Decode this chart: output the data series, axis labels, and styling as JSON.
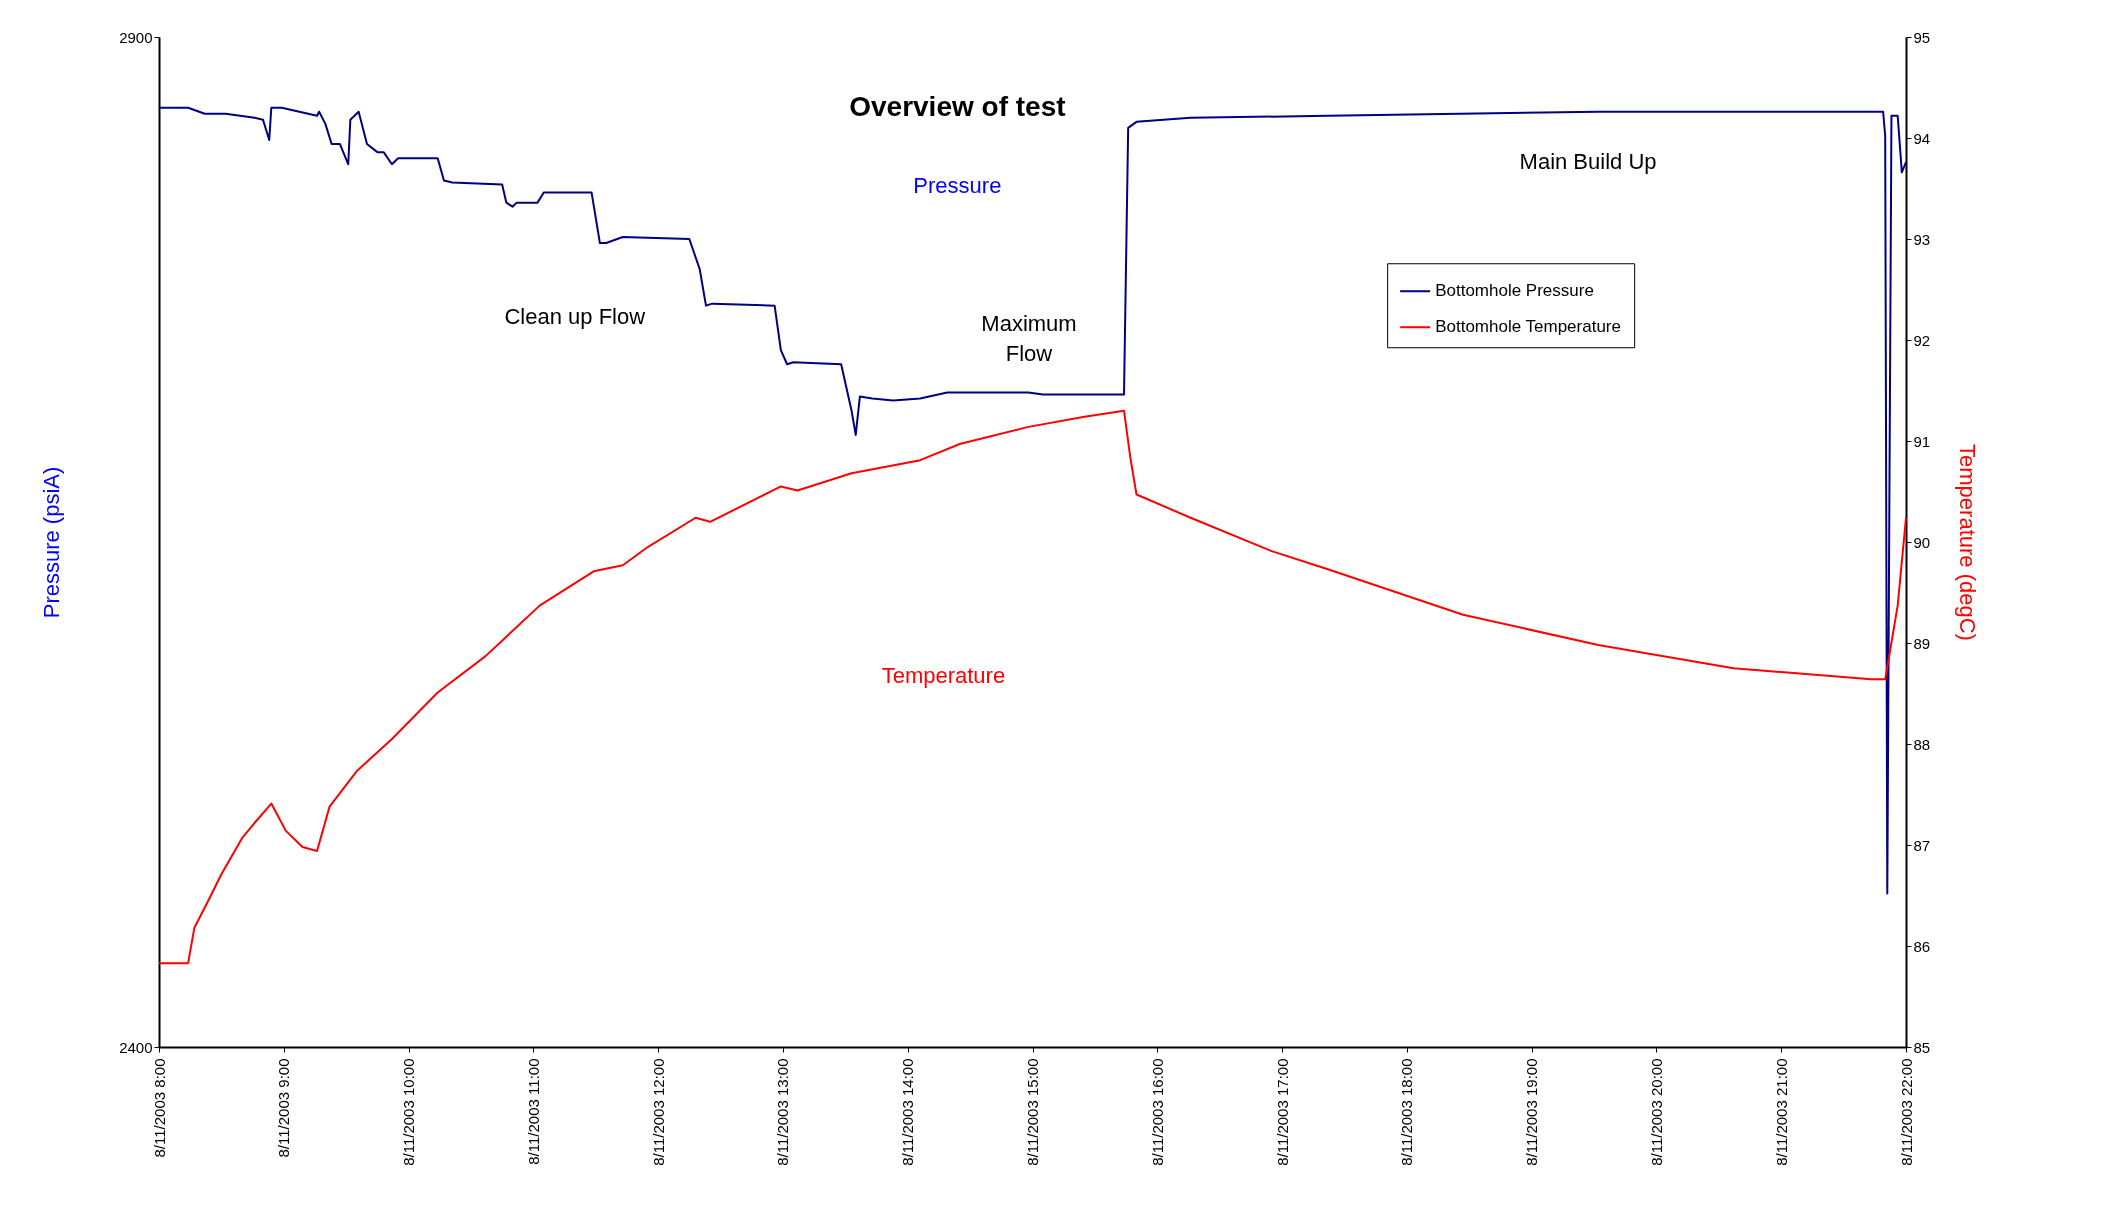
{
  "chart_data": {
    "type": "line",
    "title": "Overview of test",
    "ylabel": "Pressure (psiA)",
    "y2label": "Temperature (degC)",
    "xlim": [
      "2003-08-11T08:00",
      "2003-08-11T22:00"
    ],
    "xticks": [
      {
        "value": "2003-08-11T08:00",
        "label": "8/11/2003 8:00"
      },
      {
        "value": "2003-08-11T09:00",
        "label": "8/11/2003 9:00"
      },
      {
        "value": "2003-08-11T10:00",
        "label": "8/11/2003 10:00"
      },
      {
        "value": "2003-08-11T11:00",
        "label": "8/11/2003 11:00"
      },
      {
        "value": "2003-08-11T12:00",
        "label": "8/11/2003 12:00"
      },
      {
        "value": "2003-08-11T13:00",
        "label": "8/11/2003 13:00"
      },
      {
        "value": "2003-08-11T14:00",
        "label": "8/11/2003 14:00"
      },
      {
        "value": "2003-08-11T15:00",
        "label": "8/11/2003 15:00"
      },
      {
        "value": "2003-08-11T16:00",
        "label": "8/11/2003 16:00"
      },
      {
        "value": "2003-08-11T17:00",
        "label": "8/11/2003 17:00"
      },
      {
        "value": "2003-08-11T18:00",
        "label": "8/11/2003 18:00"
      },
      {
        "value": "2003-08-11T19:00",
        "label": "8/11/2003 19:00"
      },
      {
        "value": "2003-08-11T20:00",
        "label": "8/11/2003 20:00"
      },
      {
        "value": "2003-08-11T21:00",
        "label": "8/11/2003 21:00"
      },
      {
        "value": "2003-08-11T22:00",
        "label": "8/11/2003 22:00"
      }
    ],
    "ylim": [
      2400,
      2900
    ],
    "yticks": [
      2400,
      2900
    ],
    "y2lim": [
      85,
      95
    ],
    "y2ticks": [
      85,
      86,
      87,
      88,
      89,
      90,
      91,
      92,
      93,
      94,
      95
    ],
    "legend": "top right",
    "grid": false,
    "marker": "none",
    "line_style": "solid",
    "series": [
      {
        "name": "Bottomhole Pressure",
        "color": "#000080",
        "x": [
          "2003-08-11T08:00",
          "2003-08-11T08:14",
          "2003-08-11T08:22",
          "2003-08-11T08:32",
          "2003-08-11T08:46",
          "2003-08-11T08:50",
          "2003-08-11T08:53",
          "2003-08-11T08:54",
          "2003-08-11T08:59",
          "2003-08-11T09:16",
          "2003-08-11T09:17",
          "2003-08-11T09:20",
          "2003-08-11T09:23",
          "2003-08-11T09:27",
          "2003-08-11T09:31",
          "2003-08-11T09:32",
          "2003-08-11T09:36",
          "2003-08-11T09:40",
          "2003-08-11T09:45",
          "2003-08-11T09:48",
          "2003-08-11T09:52",
          "2003-08-11T09:55",
          "2003-08-11T10:14",
          "2003-08-11T10:17",
          "2003-08-11T10:21",
          "2003-08-11T10:45",
          "2003-08-11T10:47",
          "2003-08-11T10:50",
          "2003-08-11T10:52",
          "2003-08-11T11:02",
          "2003-08-11T11:05",
          "2003-08-11T11:28",
          "2003-08-11T11:32",
          "2003-08-11T11:35",
          "2003-08-11T11:43",
          "2003-08-11T12:15",
          "2003-08-11T12:20",
          "2003-08-11T12:23",
          "2003-08-11T12:26",
          "2003-08-11T12:56",
          "2003-08-11T12:59",
          "2003-08-11T13:02",
          "2003-08-11T13:05",
          "2003-08-11T13:28",
          "2003-08-11T13:33",
          "2003-08-11T13:35",
          "2003-08-11T13:37",
          "2003-08-11T13:43",
          "2003-08-11T13:53",
          "2003-08-11T14:06",
          "2003-08-11T14:19",
          "2003-08-11T14:58",
          "2003-08-11T15:05",
          "2003-08-11T15:44",
          "2003-08-11T15:46",
          "2003-08-11T15:50",
          "2003-08-11T16:16",
          "2003-08-11T17:22",
          "2003-08-11T19:32",
          "2003-08-11T21:49",
          "2003-08-11T21:50",
          "2003-08-11T21:51",
          "2003-08-11T21:53",
          "2003-08-11T21:56",
          "2003-08-11T21:58",
          "2003-08-11T22:00"
        ],
        "values": [
          2865,
          2865,
          2862,
          2862,
          2860,
          2859,
          2849,
          2865,
          2865,
          2861,
          2863,
          2857,
          2847,
          2847,
          2837,
          2859,
          2863,
          2847,
          2843,
          2843,
          2837,
          2840,
          2840,
          2829,
          2828,
          2827,
          2818,
          2816,
          2818,
          2818,
          2823,
          2823,
          2798,
          2798,
          2801,
          2800,
          2785,
          2767,
          2768,
          2767,
          2745,
          2738,
          2739,
          2738,
          2715,
          2703,
          2722,
          2721,
          2720,
          2721,
          2724,
          2724,
          2723,
          2723,
          2855,
          2858,
          2860,
          2861,
          2863,
          2863,
          2851,
          2476,
          2861,
          2861,
          2833,
          2838
        ]
      },
      {
        "name": "Bottomhole Temperature",
        "color": "#ff0000",
        "axis": "y2",
        "x": [
          "2003-08-11T08:00",
          "2003-08-11T08:14",
          "2003-08-11T08:17",
          "2003-08-11T08:23",
          "2003-08-11T08:30",
          "2003-08-11T08:40",
          "2003-08-11T08:46",
          "2003-08-11T08:54",
          "2003-08-11T09:01",
          "2003-08-11T09:09",
          "2003-08-11T09:16",
          "2003-08-11T09:22",
          "2003-08-11T09:35",
          "2003-08-11T09:52",
          "2003-08-11T10:14",
          "2003-08-11T10:37",
          "2003-08-11T11:03",
          "2003-08-11T11:29",
          "2003-08-11T11:43",
          "2003-08-11T11:55",
          "2003-08-11T12:18",
          "2003-08-11T12:25",
          "2003-08-11T12:59",
          "2003-08-11T13:07",
          "2003-08-11T13:33",
          "2003-08-11T14:06",
          "2003-08-11T14:25",
          "2003-08-11T14:58",
          "2003-08-11T15:25",
          "2003-08-11T15:44",
          "2003-08-11T15:47",
          "2003-08-11T15:50",
          "2003-08-11T16:16",
          "2003-08-11T16:55",
          "2003-08-11T17:22",
          "2003-08-11T18:27",
          "2003-08-11T19:32",
          "2003-08-11T20:37",
          "2003-08-11T21:43",
          "2003-08-11T21:50",
          "2003-08-11T21:56",
          "2003-08-11T22:00"
        ],
        "values": [
          85.83,
          85.83,
          86.18,
          86.42,
          86.71,
          87.07,
          87.22,
          87.41,
          87.14,
          86.98,
          86.94,
          87.38,
          87.73,
          88.05,
          88.51,
          88.87,
          89.37,
          89.71,
          89.77,
          89.95,
          90.24,
          90.2,
          90.55,
          90.51,
          90.68,
          90.81,
          90.97,
          91.14,
          91.24,
          91.3,
          90.84,
          90.47,
          90.24,
          89.91,
          89.73,
          89.28,
          88.98,
          88.75,
          88.64,
          88.64,
          89.37,
          90.24
        ]
      }
    ],
    "annotations": [
      "Pressure",
      "Clean up Flow",
      "Maximum Flow",
      "Main Build Up",
      "Temperature"
    ]
  }
}
